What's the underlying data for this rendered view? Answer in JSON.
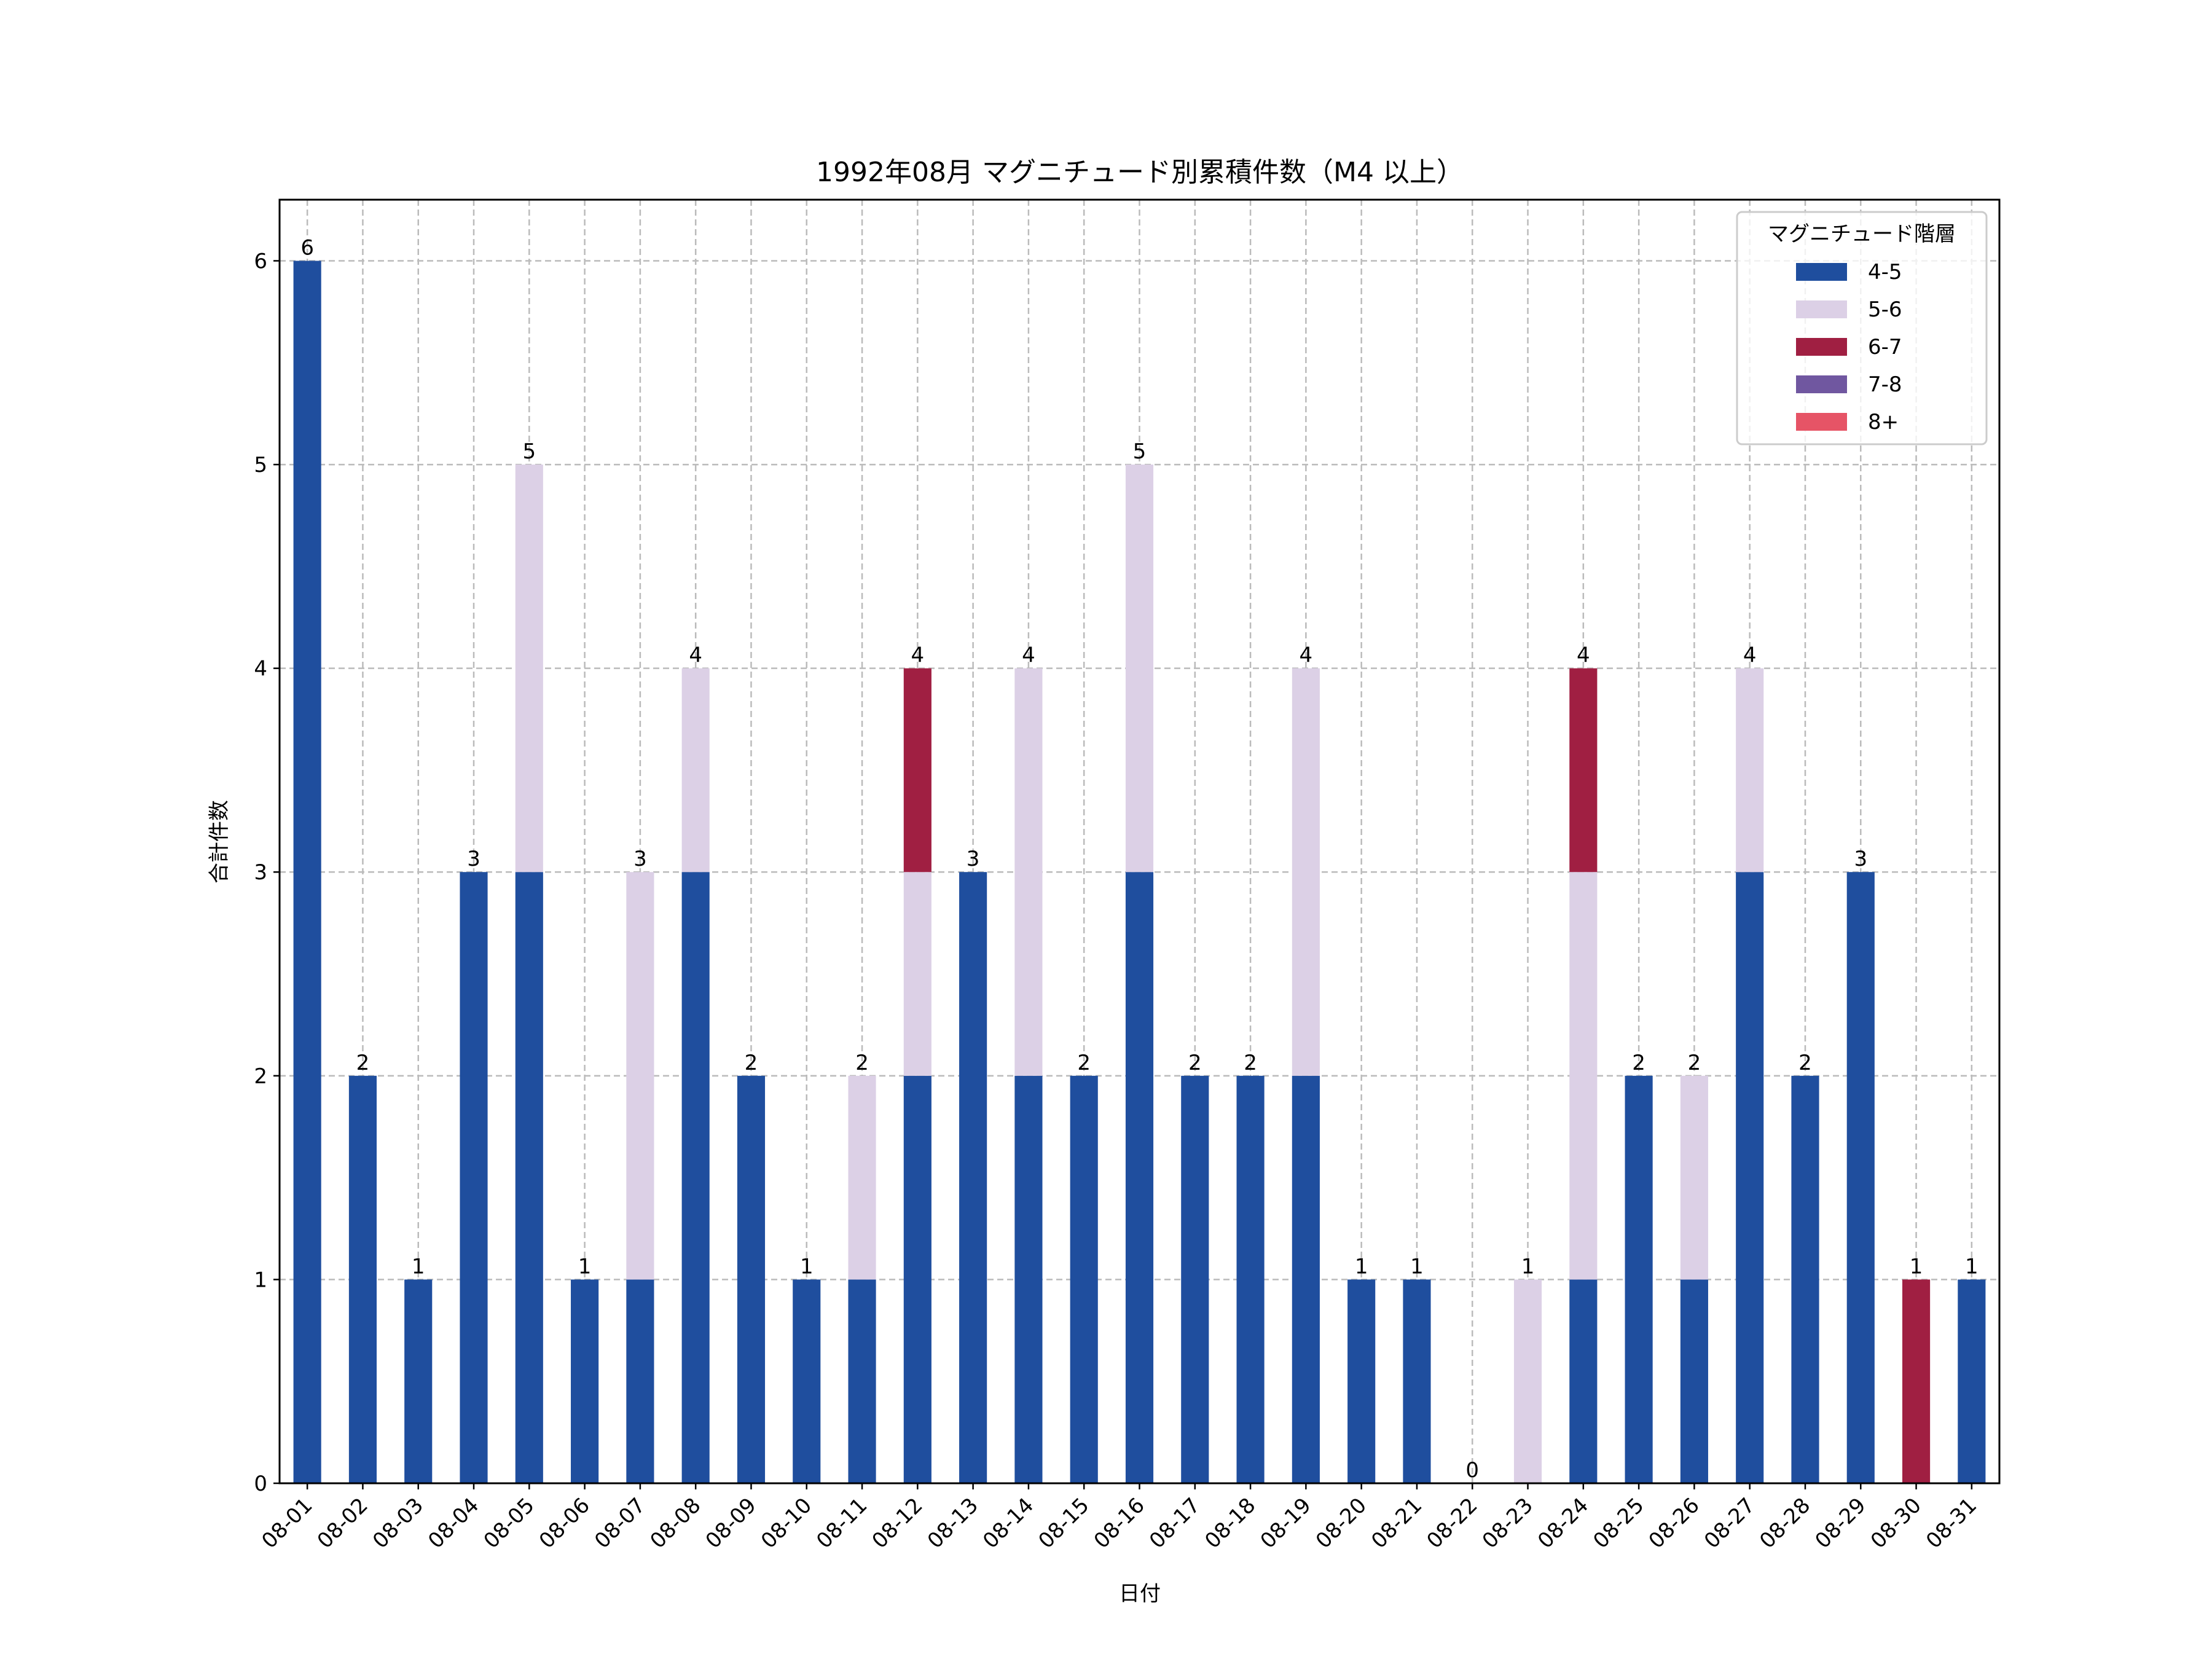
{
  "chart_data": {
    "type": "bar",
    "stacked": true,
    "title": "1992年08月 マグニチュード別累積件数（M4 以上）",
    "xlabel": "日付",
    "ylabel": "合計件数",
    "ylim": [
      0,
      6.3
    ],
    "yticks": [
      0,
      1,
      2,
      3,
      4,
      5,
      6
    ],
    "grid": true,
    "legend": {
      "title": "マグニチュード階層",
      "placement": "top-right"
    },
    "categories": [
      "08-01",
      "08-02",
      "08-03",
      "08-04",
      "08-05",
      "08-06",
      "08-07",
      "08-08",
      "08-09",
      "08-10",
      "08-11",
      "08-12",
      "08-13",
      "08-14",
      "08-15",
      "08-16",
      "08-17",
      "08-18",
      "08-19",
      "08-20",
      "08-21",
      "08-22",
      "08-23",
      "08-24",
      "08-25",
      "08-26",
      "08-27",
      "08-28",
      "08-29",
      "08-30",
      "08-31"
    ],
    "series": [
      {
        "name": "4-5",
        "color": "#1f4e9e",
        "values": [
          6,
          2,
          1,
          3,
          3,
          1,
          1,
          3,
          2,
          1,
          1,
          2,
          3,
          2,
          2,
          3,
          2,
          2,
          2,
          1,
          1,
          0,
          0,
          1,
          2,
          1,
          3,
          2,
          3,
          0,
          1
        ]
      },
      {
        "name": "5-6",
        "color": "#dcd0e6",
        "values": [
          0,
          0,
          0,
          0,
          2,
          0,
          2,
          1,
          0,
          0,
          1,
          1,
          0,
          2,
          0,
          2,
          0,
          0,
          2,
          0,
          0,
          0,
          1,
          2,
          0,
          1,
          1,
          0,
          0,
          0,
          0
        ]
      },
      {
        "name": "6-7",
        "color": "#a01f42",
        "values": [
          0,
          0,
          0,
          0,
          0,
          0,
          0,
          0,
          0,
          0,
          0,
          1,
          0,
          0,
          0,
          0,
          0,
          0,
          0,
          0,
          0,
          0,
          0,
          1,
          0,
          0,
          0,
          0,
          0,
          1,
          0
        ]
      },
      {
        "name": "7-8",
        "color": "#7057a0",
        "values": [
          0,
          0,
          0,
          0,
          0,
          0,
          0,
          0,
          0,
          0,
          0,
          0,
          0,
          0,
          0,
          0,
          0,
          0,
          0,
          0,
          0,
          0,
          0,
          0,
          0,
          0,
          0,
          0,
          0,
          0,
          0
        ]
      },
      {
        "name": "8+",
        "color": "#e65466",
        "values": [
          0,
          0,
          0,
          0,
          0,
          0,
          0,
          0,
          0,
          0,
          0,
          0,
          0,
          0,
          0,
          0,
          0,
          0,
          0,
          0,
          0,
          0,
          0,
          0,
          0,
          0,
          0,
          0,
          0,
          0,
          0
        ]
      }
    ],
    "totals": [
      6,
      2,
      1,
      3,
      5,
      1,
      3,
      4,
      2,
      1,
      2,
      4,
      3,
      4,
      2,
      5,
      2,
      2,
      4,
      1,
      1,
      0,
      1,
      4,
      2,
      2,
      4,
      2,
      3,
      1,
      1
    ]
  }
}
